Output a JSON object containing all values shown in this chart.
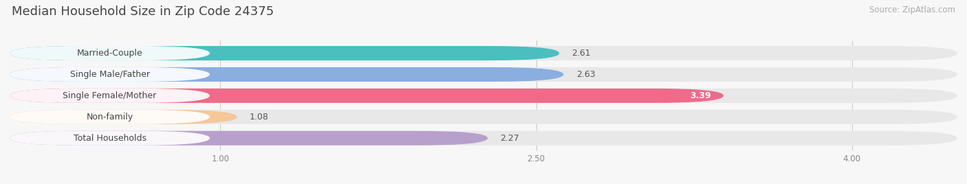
{
  "title": "Median Household Size in Zip Code 24375",
  "source": "Source: ZipAtlas.com",
  "categories": [
    "Married-Couple",
    "Single Male/Father",
    "Single Female/Mother",
    "Non-family",
    "Total Households"
  ],
  "values": [
    2.61,
    2.63,
    3.39,
    1.08,
    2.27
  ],
  "bar_colors": [
    "#4BBFBF",
    "#8AAEE0",
    "#F06A8A",
    "#F5C89A",
    "#B8A0CC"
  ],
  "xlim": [
    0.0,
    4.5
  ],
  "xticks": [
    1.0,
    2.5,
    4.0
  ],
  "xtick_labels": [
    "1.00",
    "2.50",
    "4.00"
  ],
  "title_fontsize": 13,
  "source_fontsize": 8.5,
  "label_fontsize": 9,
  "value_fontsize": 9,
  "background_color": "#F7F7F7",
  "bar_bg_color": "#E8E8E8",
  "bar_height": 0.68,
  "value_inside_threshold": 3.0
}
